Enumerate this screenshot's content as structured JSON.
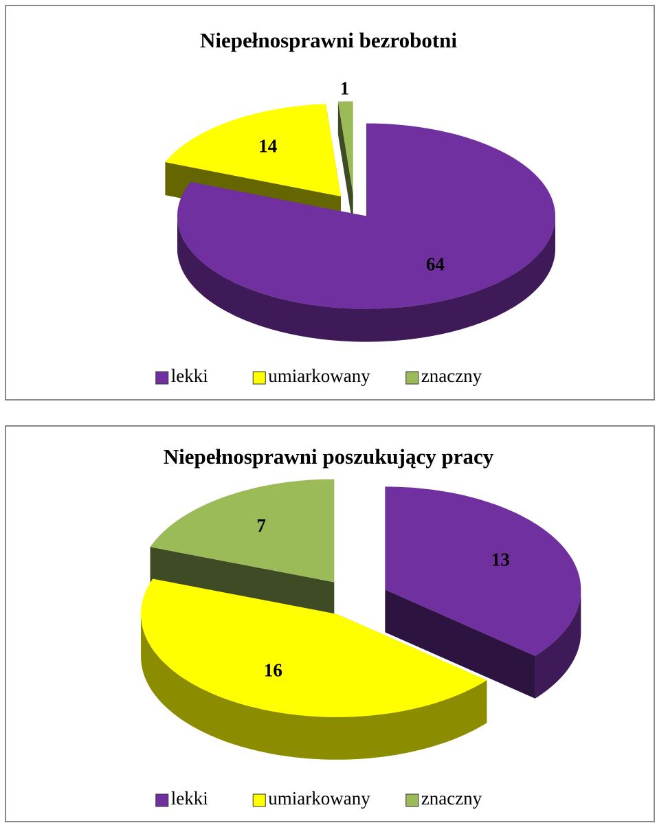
{
  "chart_data": [
    {
      "type": "pie",
      "title": "Niepełnosprawni bezrobotni",
      "categories": [
        "lekki",
        "umiarkowany",
        "znaczny"
      ],
      "values": [
        64,
        14,
        1
      ],
      "colors": [
        "#7030a0",
        "#ffff00",
        "#9bbb59"
      ]
    },
    {
      "type": "pie",
      "title": "Niepełnosprawni poszukujący pracy",
      "categories": [
        "lekki",
        "umiarkowany",
        "znaczny"
      ],
      "values": [
        13,
        16,
        7
      ],
      "colors": [
        "#7030a0",
        "#ffff00",
        "#9bbb59"
      ]
    }
  ]
}
